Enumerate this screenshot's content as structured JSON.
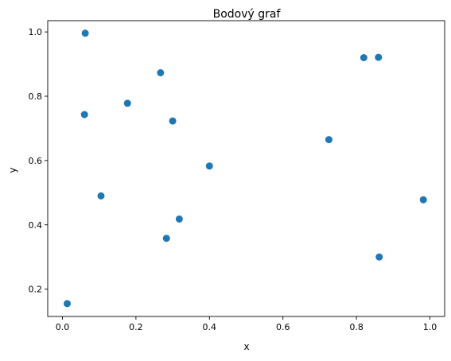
{
  "chart_data": {
    "type": "scatter",
    "title": "Bodový graf",
    "xlabel": "x",
    "ylabel": "y",
    "xlim": [
      -0.04,
      1.04
    ],
    "ylim": [
      0.115,
      1.035
    ],
    "xticks": [
      0.0,
      0.2,
      0.4,
      0.6,
      0.8,
      1.0
    ],
    "xtick_labels": [
      "0.0",
      "0.2",
      "0.4",
      "0.6",
      "0.8",
      "1.0"
    ],
    "yticks": [
      0.2,
      0.4,
      0.6,
      0.8,
      1.0
    ],
    "ytick_labels": [
      "0.2",
      "0.4",
      "0.6",
      "0.8",
      "1.0"
    ],
    "grid": false,
    "marker_color": "#1f77b4",
    "points": [
      {
        "x": 0.013,
        "y": 0.155
      },
      {
        "x": 0.06,
        "y": 0.743
      },
      {
        "x": 0.062,
        "y": 0.996
      },
      {
        "x": 0.105,
        "y": 0.49
      },
      {
        "x": 0.177,
        "y": 0.778
      },
      {
        "x": 0.267,
        "y": 0.873
      },
      {
        "x": 0.283,
        "y": 0.358
      },
      {
        "x": 0.3,
        "y": 0.723
      },
      {
        "x": 0.318,
        "y": 0.418
      },
      {
        "x": 0.4,
        "y": 0.583
      },
      {
        "x": 0.725,
        "y": 0.665
      },
      {
        "x": 0.82,
        "y": 0.92
      },
      {
        "x": 0.86,
        "y": 0.921
      },
      {
        "x": 0.862,
        "y": 0.3
      },
      {
        "x": 0.982,
        "y": 0.478
      }
    ]
  }
}
